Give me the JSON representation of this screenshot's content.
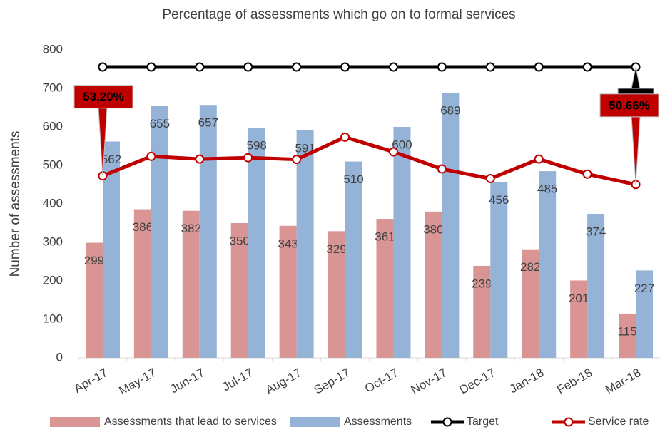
{
  "chart_data": {
    "type": "bar_line",
    "title": "Percentage of assessments which go on to formal services",
    "y_label": "Number of assessments",
    "categories": [
      "Apr-17",
      "May-17",
      "Jun-17",
      "Jul-17",
      "Aug-17",
      "Sep-17",
      "Oct-17",
      "Nov-17",
      "Dec-17",
      "Jan-18",
      "Feb-18",
      "Mar-18"
    ],
    "ylim": [
      0,
      800
    ],
    "yticks": [
      0,
      100,
      200,
      300,
      400,
      500,
      600,
      700,
      800
    ],
    "y2lim": [
      0,
      90
    ],
    "series": [
      {
        "name": "Assessments that lead to services",
        "type": "bar",
        "color": "#d99594",
        "values": [
          299,
          386,
          382,
          350,
          343,
          329,
          361,
          380,
          239,
          282,
          201,
          115
        ]
      },
      {
        "name": "Assessments",
        "type": "bar",
        "color": "#95b3d7",
        "values": [
          562,
          655,
          657,
          598,
          591,
          510,
          600,
          689,
          456,
          485,
          374,
          227
        ]
      },
      {
        "name": "Target",
        "type": "line",
        "axis": "y2",
        "color": "#000000",
        "values": [
          85,
          85,
          85,
          85,
          85,
          85,
          85,
          85,
          85,
          85,
          85,
          85
        ],
        "value_labels": [
          null,
          null,
          null,
          null,
          null,
          null,
          null,
          null,
          null,
          null,
          null,
          "85%"
        ]
      },
      {
        "name": "Service rate",
        "type": "line",
        "axis": "y2",
        "color": "#c00000",
        "values": [
          53.2,
          58.9,
          58.1,
          58.5,
          58.0,
          64.5,
          60.2,
          55.2,
          52.4,
          58.1,
          53.7,
          50.66
        ],
        "value_labels": [
          "53.20%",
          null,
          null,
          null,
          null,
          null,
          null,
          null,
          null,
          null,
          null,
          "50.66%"
        ]
      }
    ]
  }
}
